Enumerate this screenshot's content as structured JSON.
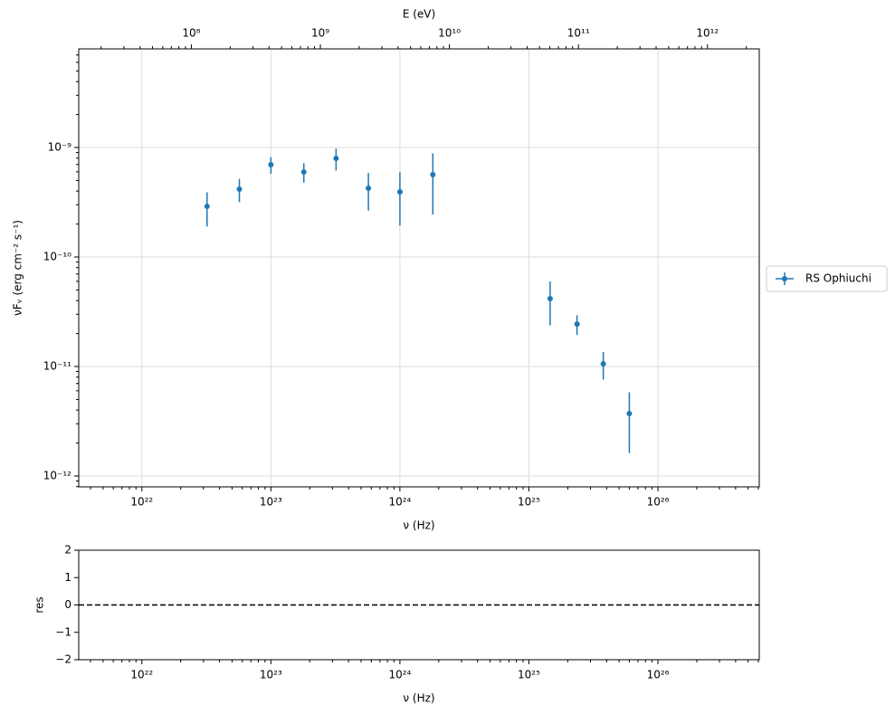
{
  "chart_data": [
    {
      "type": "errorbar",
      "x_label": "ν  (Hz)",
      "y_label": "νFᵥ  (erg cm⁻²  s⁻¹)",
      "x2_label": "E (eV)",
      "x": [
        3.2e+22,
        5.7e+22,
        1e+23,
        1.8e+23,
        3.2e+23,
        5.7e+23,
        1e+24,
        1.8e+24,
        1.46e+25,
        2.36e+25,
        3.77e+25,
        6e+25
      ],
      "series": [
        {
          "name": "RS Ophiuchi",
          "color": "#1f77b4",
          "values": [
            2.9e-10,
            4.17e-10,
            6.97e-10,
            5.98e-10,
            7.96e-10,
            4.25e-10,
            3.94e-10,
            5.65e-10,
            4.17e-11,
            2.44e-11,
            1.06e-11,
            3.72e-12
          ],
          "yerr": [
            1e-10,
            1e-10,
            1.2e-10,
            1.2e-10,
            1.8e-10,
            1.6e-10,
            2e-10,
            3.2e-10,
            1.8e-11,
            5e-12,
            3e-12,
            2.1e-12
          ]
        }
      ],
      "xlim": [
        3.24e+21,
        6.1e+26
      ],
      "ylim": [
        7.96e-13,
        7.96e-09
      ],
      "x2lim": [
        13400000.0,
        2520000000000.0
      ],
      "log_x": true,
      "log_y": true,
      "grid": true,
      "legend": "outside right",
      "xticks": [
        {
          "value": 1e+22,
          "label": "10²²"
        },
        {
          "value": 1e+23,
          "label": "10²³"
        },
        {
          "value": 1e+24,
          "label": "10²⁴"
        },
        {
          "value": 1e+25,
          "label": "10²⁵"
        },
        {
          "value": 1e+26,
          "label": "10²⁶"
        }
      ],
      "x2ticks": [
        {
          "value": 100000000.0,
          "label": "10⁸"
        },
        {
          "value": 1000000000.0,
          "label": "10⁹"
        },
        {
          "value": 10000000000.0,
          "label": "10¹⁰"
        },
        {
          "value": 100000000000.0,
          "label": "10¹¹"
        },
        {
          "value": 1000000000000.0,
          "label": "10¹²"
        }
      ],
      "yticks": [
        {
          "value": 1e-12,
          "label": "10⁻¹²"
        },
        {
          "value": 1e-11,
          "label": "10⁻¹¹"
        },
        {
          "value": 1e-10,
          "label": "10⁻¹⁰"
        },
        {
          "value": 1e-09,
          "label": "10⁻⁹"
        }
      ]
    },
    {
      "type": "residual",
      "x_label": "ν  (Hz)",
      "y_label": "res",
      "xlim": [
        3.24e+21,
        6.1e+26
      ],
      "ylim": [
        -2,
        2
      ],
      "log_x": true,
      "hline": 0,
      "xticks": [
        {
          "value": 1e+22,
          "label": "10²²"
        },
        {
          "value": 1e+23,
          "label": "10²³"
        },
        {
          "value": 1e+24,
          "label": "10²⁴"
        },
        {
          "value": 1e+25,
          "label": "10²⁵"
        },
        {
          "value": 1e+26,
          "label": "10²⁶"
        }
      ],
      "yticks": [
        {
          "value": -2,
          "label": "−2"
        },
        {
          "value": -1,
          "label": "−1"
        },
        0,
        1,
        2
      ]
    }
  ]
}
